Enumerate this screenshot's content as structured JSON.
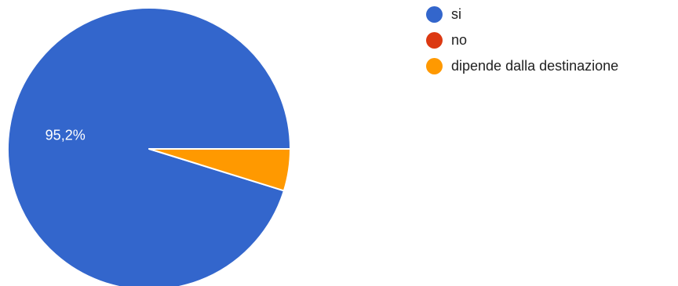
{
  "chart_data": {
    "type": "pie",
    "title": "",
    "slices": [
      {
        "label": "si",
        "value": 95.2,
        "color": "#3366cc",
        "data_label": "95,2%"
      },
      {
        "label": "no",
        "value": 0,
        "color": "#dc3912",
        "data_label": ""
      },
      {
        "label": "dipende dalla destinazione",
        "value": 4.8,
        "color": "#ff9900",
        "data_label": ""
      }
    ],
    "legend_position": "top-right",
    "start_angle": "3 o'clock, counter-clockwise"
  }
}
